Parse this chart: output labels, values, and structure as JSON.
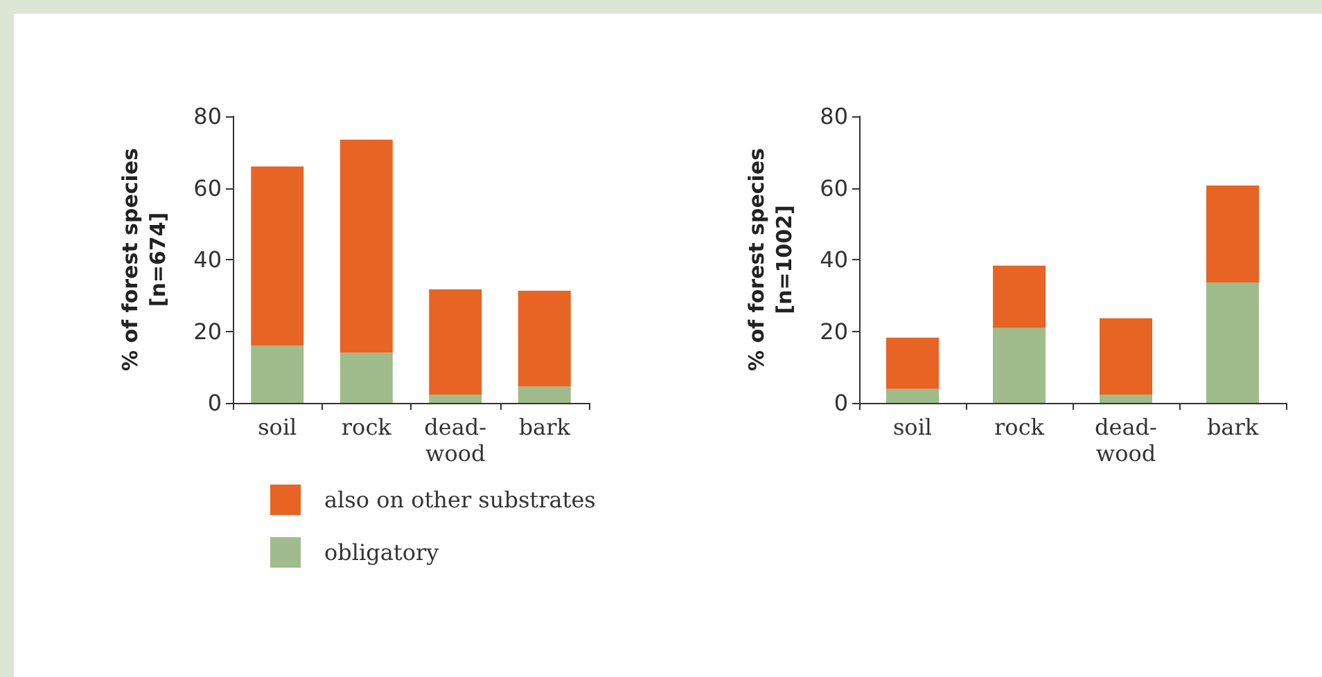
{
  "chart_data": [
    {
      "type": "bar",
      "ylabel": "% of forest species\n[n=674]",
      "categories": [
        "soil",
        "rock",
        "dead-\nwood",
        "bark"
      ],
      "stacked": true,
      "legend": "bottom",
      "grid": false,
      "ylim": [
        0,
        80
      ],
      "yticks": [
        0,
        20,
        40,
        60,
        80
      ],
      "series": [
        {
          "name": "obligatory",
          "color": "#a0bb8c",
          "values": [
            16,
            14,
            2.3,
            4.6
          ]
        },
        {
          "name": "also on other substrates",
          "color": "#e86424",
          "values": [
            50,
            59.5,
            29.4,
            26.7
          ]
        }
      ]
    },
    {
      "type": "bar",
      "ylabel": "% of forest species\n[n=1002]",
      "categories": [
        "soil",
        "rock",
        "dead-\nwood",
        "bark"
      ],
      "stacked": true,
      "grid": false,
      "ylim": [
        0,
        80
      ],
      "yticks": [
        0,
        20,
        40,
        60,
        80
      ],
      "series": [
        {
          "color": "#a0bb8c",
          "values": [
            3.9,
            20.9,
            2.3,
            33.6
          ]
        },
        {
          "color": "#e86424",
          "values": [
            14.3,
            17.4,
            21.3,
            27.1
          ]
        }
      ]
    }
  ]
}
